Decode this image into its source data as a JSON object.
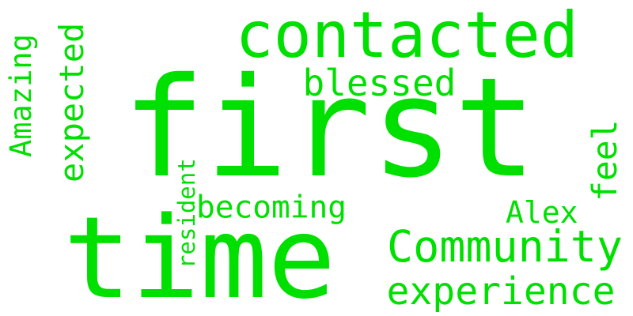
{
  "word_cloud": {
    "color": "#00e000",
    "words": [
      {
        "key": "first",
        "text": "first"
      },
      {
        "key": "time",
        "text": "time"
      },
      {
        "key": "contacted",
        "text": "contacted"
      },
      {
        "key": "community",
        "text": "Community"
      },
      {
        "key": "experience",
        "text": "experience"
      },
      {
        "key": "amazing",
        "text": "Amazing"
      },
      {
        "key": "expected",
        "text": "expected"
      },
      {
        "key": "blessed",
        "text": "blessed"
      },
      {
        "key": "alex",
        "text": "Alex"
      },
      {
        "key": "feel",
        "text": "feel"
      },
      {
        "key": "becoming",
        "text": "becoming"
      },
      {
        "key": "resident",
        "text": "resident"
      }
    ]
  }
}
